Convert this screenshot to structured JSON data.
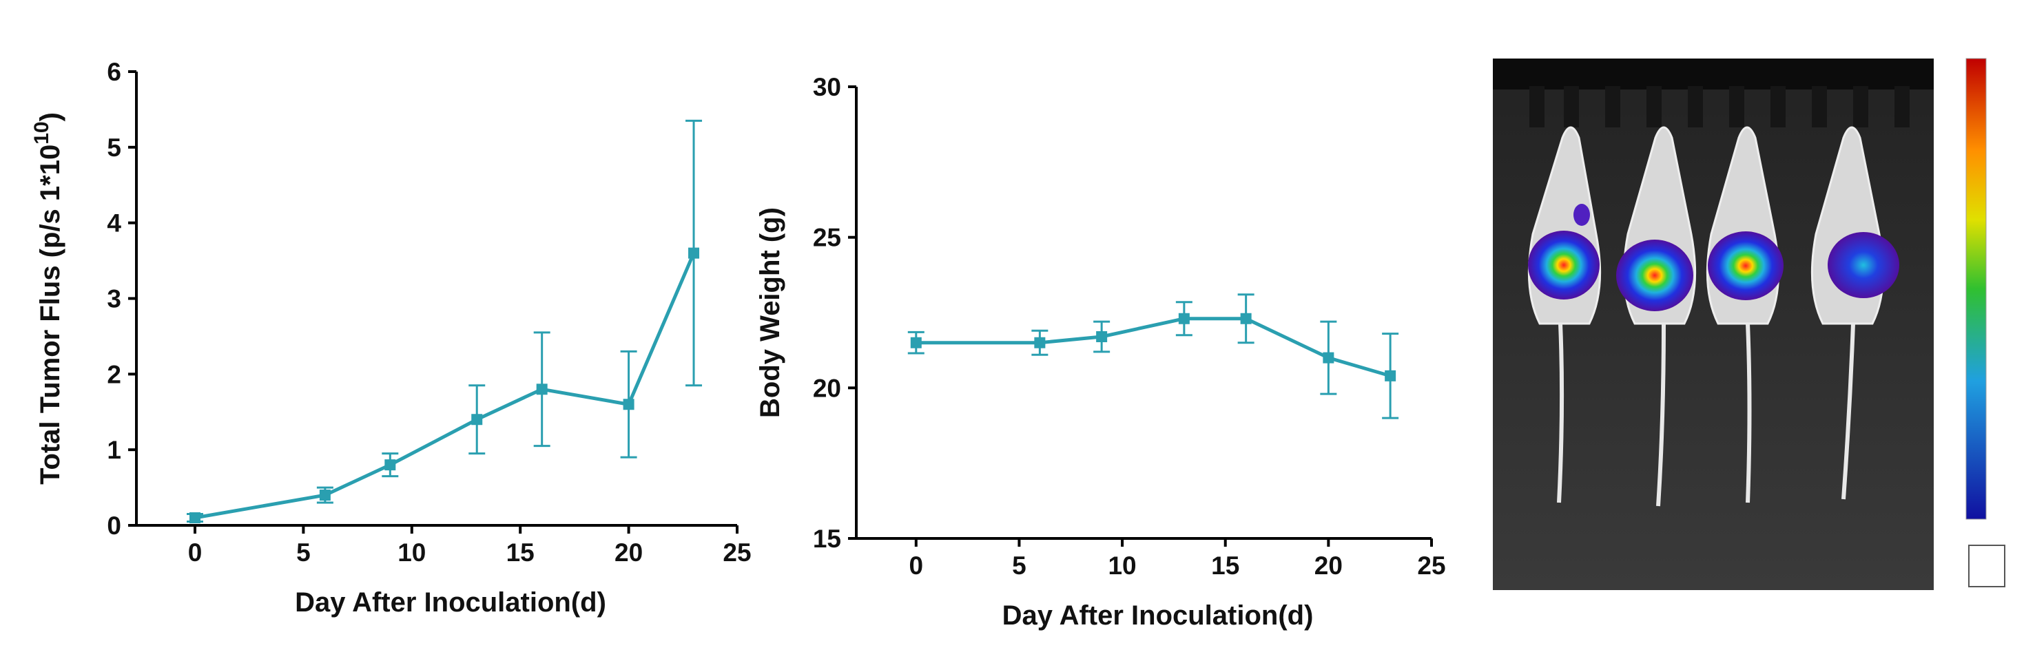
{
  "chart_data": [
    {
      "type": "line",
      "x_label": "Day After Inoculation(d)",
      "y_label": "Total Tumor Flus (p/s 1*10",
      "y_label_superscript": "10",
      "y_label_suffix": ")",
      "color": "#2a9fb0",
      "x": [
        0,
        6,
        9,
        13,
        16,
        20,
        23
      ],
      "values": [
        0.1,
        0.4,
        0.8,
        1.4,
        1.8,
        1.6,
        3.6
      ],
      "errors": [
        0.05,
        0.1,
        0.15,
        0.45,
        0.75,
        0.7,
        1.75
      ],
      "xlim": [
        -2.7,
        25
      ],
      "xticks": [
        0,
        5,
        10,
        15,
        20,
        25
      ],
      "ylim": [
        0,
        6
      ],
      "yticks": [
        0,
        1,
        2,
        3,
        4,
        5,
        6
      ]
    },
    {
      "type": "line",
      "x_label": "Day After Inoculation(d)",
      "y_label": "Body Weight (g)",
      "color": "#2a9fb0",
      "x": [
        0,
        6,
        9,
        13,
        16,
        20,
        23
      ],
      "values": [
        21.5,
        21.5,
        21.7,
        22.3,
        22.3,
        21.0,
        20.4
      ],
      "errors": [
        0.35,
        0.4,
        0.5,
        0.55,
        0.8,
        1.2,
        1.4
      ],
      "xlim": [
        -2.9,
        25
      ],
      "xticks": [
        0,
        5,
        10,
        15,
        20,
        25
      ],
      "ylim": [
        15,
        30
      ],
      "yticks": [
        15,
        20,
        25,
        30
      ]
    }
  ]
}
